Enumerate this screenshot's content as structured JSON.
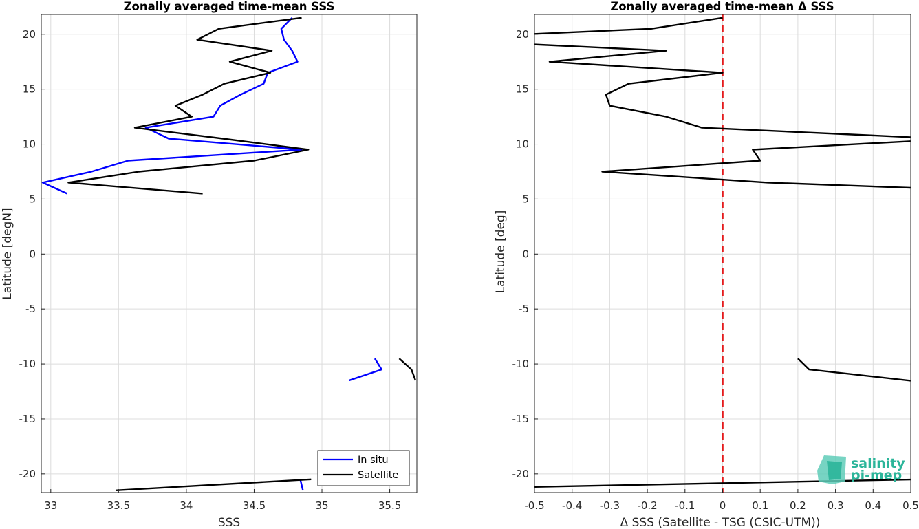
{
  "chart_data": [
    {
      "type": "line",
      "title": "Zonally averaged time-mean SSS",
      "xlabel": "SSS",
      "ylabel": "Latitude [degN]",
      "xlim": [
        32.93,
        35.7
      ],
      "ylim": [
        -21.7,
        21.8
      ],
      "xticks": [
        33,
        33.5,
        34,
        34.5,
        35,
        35.5
      ],
      "xticklabels": [
        "33",
        "33.5",
        "34",
        "34.5",
        "35",
        "35.5"
      ],
      "yticks": [
        -20,
        -15,
        -10,
        -5,
        0,
        5,
        10,
        15,
        20
      ],
      "yticklabels": [
        "-20",
        "-15",
        "-10",
        "-5",
        "0",
        "5",
        "10",
        "15",
        "20"
      ],
      "grid": true,
      "legend": "bottom-right",
      "series": [
        {
          "name": "In situ",
          "color": "#0000ff",
          "segments": [
            [
              [
                34.78,
                21.5
              ],
              [
                34.7,
                20.5
              ],
              [
                34.72,
                19.5
              ],
              [
                34.78,
                18.5
              ],
              [
                34.82,
                17.5
              ],
              [
                34.6,
                16.5
              ],
              [
                34.57,
                15.5
              ],
              [
                34.4,
                14.5
              ],
              [
                34.25,
                13.5
              ],
              [
                34.2,
                12.5
              ],
              [
                33.7,
                11.5
              ],
              [
                33.87,
                10.5
              ],
              [
                34.85,
                9.5
              ],
              [
                33.57,
                8.5
              ],
              [
                33.3,
                7.5
              ],
              [
                32.94,
                6.5
              ],
              [
                33.12,
                5.5
              ]
            ],
            [
              [
                35.39,
                -9.5
              ],
              [
                35.44,
                -10.5
              ],
              [
                35.2,
                -11.5
              ]
            ],
            [
              [
                34.84,
                -20.5
              ],
              [
                34.86,
                -21.5
              ]
            ]
          ]
        },
        {
          "name": "Satellite",
          "color": "#000000",
          "segments": [
            [
              [
                34.85,
                21.5
              ],
              [
                34.24,
                20.5
              ],
              [
                34.08,
                19.5
              ],
              [
                34.63,
                18.5
              ],
              [
                34.32,
                17.5
              ],
              [
                34.62,
                16.5
              ],
              [
                34.28,
                15.5
              ],
              [
                34.12,
                14.5
              ],
              [
                33.92,
                13.5
              ],
              [
                34.04,
                12.5
              ],
              [
                33.62,
                11.5
              ],
              [
                34.27,
                10.5
              ],
              [
                34.9,
                9.5
              ],
              [
                34.5,
                8.5
              ],
              [
                33.65,
                7.5
              ],
              [
                33.13,
                6.5
              ],
              [
                34.12,
                5.5
              ]
            ],
            [
              [
                35.57,
                -9.5
              ],
              [
                35.66,
                -10.5
              ],
              [
                35.69,
                -11.5
              ]
            ],
            [
              [
                34.92,
                -20.5
              ],
              [
                33.48,
                -21.5
              ]
            ]
          ]
        }
      ]
    },
    {
      "type": "line",
      "title": "Zonally averaged time-mean Δ SSS",
      "xlabel": "Δ SSS (Satellite - TSG (CSIC-UTM))",
      "ylabel": "Latitude [deg]",
      "xlim": [
        -0.5,
        0.5
      ],
      "ylim": [
        -21.7,
        21.8
      ],
      "xticks": [
        -0.5,
        -0.4,
        -0.3,
        -0.2,
        -0.1,
        0,
        0.1,
        0.2,
        0.3,
        0.4,
        0.5
      ],
      "xticklabels": [
        "-0.5",
        "-0.4",
        "-0.3",
        "-0.2",
        "-0.1",
        "0",
        "0.1",
        "0.2",
        "0.3",
        "0.4",
        "0.5"
      ],
      "yticks": [
        -20,
        -15,
        -10,
        -5,
        0,
        5,
        10,
        15,
        20
      ],
      "yticklabels": [
        "-20",
        "-15",
        "-10",
        "-5",
        "0",
        "5",
        "10",
        "15",
        "20"
      ],
      "grid": true,
      "reference_line": {
        "x": 0,
        "color": "#e41a1c",
        "style": "dashed"
      },
      "series": [
        {
          "color": "#000000",
          "segments": [
            [
              [
                0.0,
                21.5
              ],
              [
                -0.19,
                20.5
              ],
              [
                -0.52,
                20.0
              ]
            ],
            [
              [
                -0.52,
                19.1
              ],
              [
                -0.15,
                18.5
              ],
              [
                -0.46,
                17.5
              ],
              [
                0.0,
                16.5
              ],
              [
                -0.25,
                15.5
              ],
              [
                -0.31,
                14.5
              ],
              [
                -0.3,
                13.5
              ],
              [
                -0.15,
                12.5
              ],
              [
                -0.055,
                11.5
              ],
              [
                0.52,
                10.6
              ]
            ],
            [
              [
                0.52,
                10.3
              ],
              [
                0.08,
                9.5
              ],
              [
                0.1,
                8.5
              ],
              [
                -0.32,
                7.5
              ],
              [
                0.12,
                6.5
              ],
              [
                0.52,
                6.0
              ]
            ],
            [
              [
                0.2,
                -9.5
              ],
              [
                0.23,
                -10.5
              ],
              [
                0.52,
                -11.6
              ]
            ],
            [
              [
                0.52,
                -20.5
              ],
              [
                -0.52,
                -21.2
              ]
            ]
          ]
        }
      ]
    }
  ],
  "legend": {
    "in_situ_label": "In situ",
    "satellite_label": "Satellite"
  },
  "logo": {
    "line1": "salinity",
    "line2": "pi-mep",
    "color": "#2bb59a"
  }
}
